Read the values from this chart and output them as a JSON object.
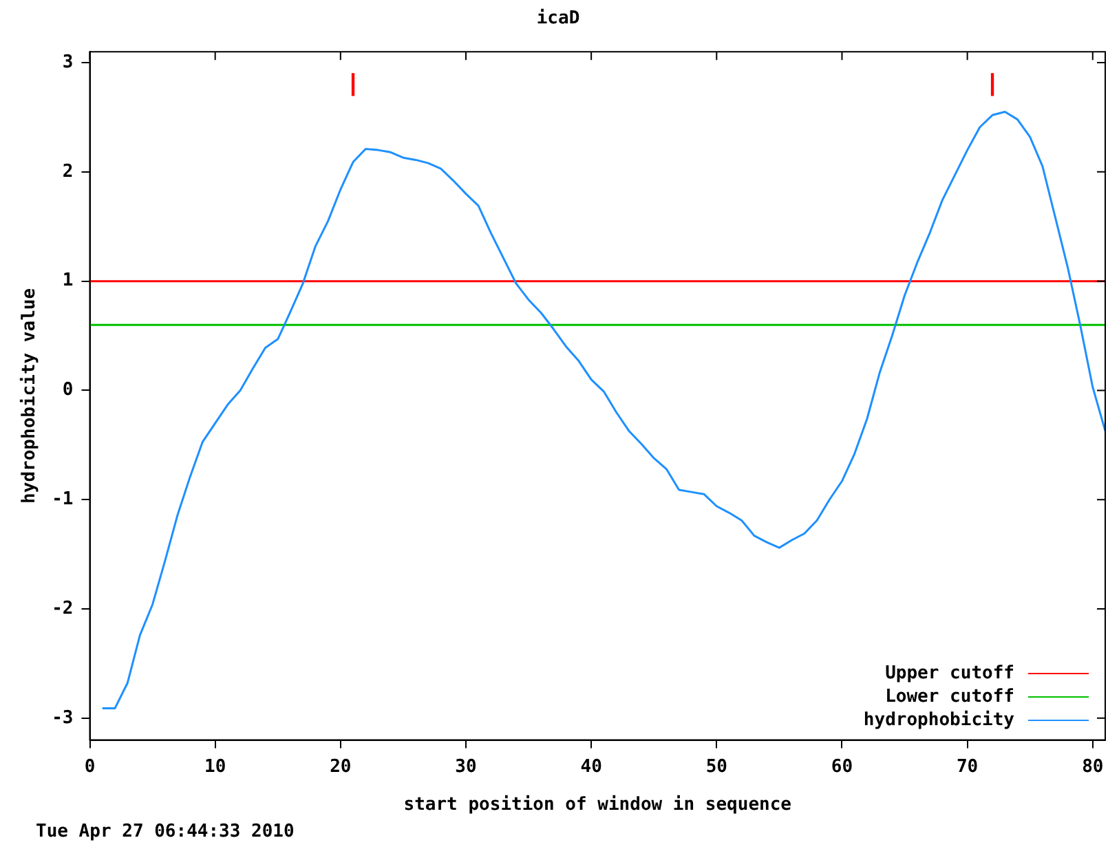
{
  "chart_data": {
    "type": "line",
    "title": "icaD",
    "xlabel": "start position of window in sequence",
    "ylabel": "hydrophobicity value",
    "xlim": [
      0,
      81
    ],
    "ylim": [
      -3.2,
      3.1
    ],
    "xticks": [
      0,
      10,
      20,
      30,
      40,
      50,
      60,
      70,
      80
    ],
    "yticks": [
      -3,
      -2,
      -1,
      0,
      1,
      2,
      3
    ],
    "grid": false,
    "legend": "bottom right",
    "marker": "none",
    "line_style": "solid",
    "ref_lines": [
      {
        "axis": "y",
        "value": 1,
        "label": "Upper cutoff",
        "color": "#ff0000"
      },
      {
        "axis": "y",
        "value": 0.6,
        "label": "Lower cutoff",
        "color": "#00c000"
      }
    ],
    "series": [
      {
        "name": "hydrophobicity",
        "color": "#1e90ff",
        "x": [
          1,
          2,
          3,
          4,
          5,
          6,
          7,
          8,
          9,
          10,
          11,
          12,
          13,
          14,
          15,
          16,
          17,
          18,
          19,
          20,
          21,
          22,
          23,
          24,
          25,
          26,
          27,
          28,
          29,
          30,
          31,
          32,
          33,
          34,
          35,
          36,
          37,
          38,
          39,
          40,
          41,
          42,
          43,
          44,
          45,
          46,
          47,
          48,
          49,
          50,
          51,
          52,
          53,
          54,
          55,
          56,
          57,
          58,
          59,
          60,
          61,
          62,
          63,
          64,
          65,
          66,
          67,
          68,
          69,
          70,
          71,
          72,
          73,
          74,
          75,
          76,
          77,
          78,
          79,
          80,
          81
        ],
        "values": [
          -2.91,
          -2.91,
          -2.68,
          -2.24,
          -1.96,
          -1.56,
          -1.14,
          -0.79,
          -0.47,
          -0.3,
          -0.13,
          0.0,
          0.2,
          0.39,
          0.47,
          0.72,
          0.98,
          1.32,
          1.55,
          1.84,
          2.09,
          2.21,
          2.2,
          2.18,
          2.13,
          2.11,
          2.08,
          2.03,
          1.92,
          1.8,
          1.69,
          1.44,
          1.21,
          0.98,
          0.83,
          0.71,
          0.56,
          0.4,
          0.27,
          0.1,
          -0.01,
          -0.2,
          -0.37,
          -0.49,
          -0.62,
          -0.72,
          -0.91,
          -0.93,
          -0.95,
          -1.06,
          -1.12,
          -1.19,
          -1.33,
          -1.39,
          -1.44,
          -1.37,
          -1.31,
          -1.19,
          -1.0,
          -0.83,
          -0.58,
          -0.26,
          0.16,
          0.5,
          0.87,
          1.17,
          1.44,
          1.74,
          1.97,
          2.2,
          2.41,
          2.52,
          2.55,
          2.48,
          2.32,
          2.05,
          1.59,
          1.13,
          0.6,
          0.03,
          -0.37
        ]
      },
      {
        "type": "bar",
        "color": "#ff0000",
        "x": [
          21,
          72
        ],
        "values": [
          0.2,
          0.2
        ],
        "base": [
          2.7,
          2.7
        ]
      }
    ],
    "annotations": [
      "Tue Apr 27 06:44:33 2010"
    ]
  }
}
